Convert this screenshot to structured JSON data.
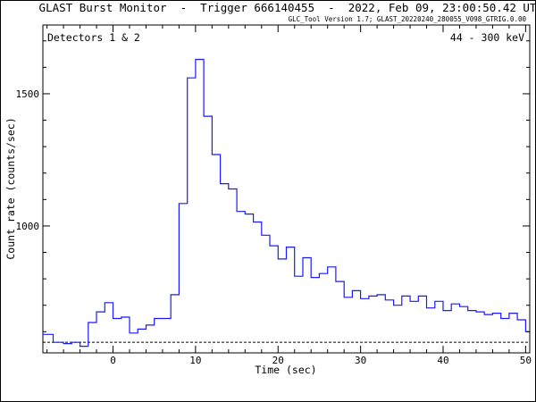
{
  "header": {
    "title": "GLAST Burst Monitor  -  Trigger 666140455  -  2022, Feb 09, 23:00:50.42 UT",
    "subtitle": "GLC_Tool Version 1.7; GLAST_20220240_280055_V098_GTRIG.0.00"
  },
  "annotations": {
    "detectors": "Detectors 1 & 2",
    "energy": "44 - 300 keV"
  },
  "colors": {
    "curve": "#1a1aff",
    "axes": "#000000",
    "baseline": "#000000"
  },
  "chart_data": {
    "type": "line",
    "title": "GLAST Burst Monitor  -  Trigger 666140455  -  2022, Feb 09, 23:00:50.42 UT",
    "xlabel": "Time (sec)",
    "ylabel": "Count rate (counts/sec)",
    "xlim": [
      -8.5,
      50.5
    ],
    "ylim": [
      520,
      1760
    ],
    "x_ticks": [
      0,
      10,
      20,
      30,
      40,
      50
    ],
    "x_tick_labels": [
      "0",
      "10",
      "20",
      "30",
      "40",
      "50"
    ],
    "y_ticks": [
      1000,
      1500
    ],
    "y_tick_labels": [
      "1000",
      "1500"
    ],
    "background_level": 560,
    "grid": false,
    "series": [
      {
        "style": "histogram",
        "bin_edges": [
          -8.5,
          -7.25,
          -6.0,
          -5.0,
          -4.0,
          -3.0,
          -2.0,
          -1.0,
          0.0,
          1.0,
          2.0,
          3.0,
          4.0,
          5.0,
          6.0,
          7.0,
          8.0,
          9.0,
          10.0,
          11.0,
          12.0,
          13.0,
          14.0,
          15.0,
          16.0,
          17.0,
          18.0,
          19.0,
          20.0,
          21.0,
          22.0,
          23.0,
          24.0,
          25.0,
          26.0,
          27.0,
          28.0,
          29.0,
          30.0,
          31.0,
          32.0,
          33.0,
          34.0,
          35.0,
          36.0,
          37.0,
          38.0,
          39.0,
          40.0,
          41.0,
          42.0,
          43.0,
          44.0,
          45.0,
          46.0,
          47.0,
          48.0,
          49.0,
          50.0,
          50.5
        ],
        "values": [
          590,
          560,
          555,
          560,
          545,
          635,
          675,
          710,
          650,
          655,
          595,
          610,
          625,
          650,
          650,
          740,
          1085,
          1560,
          1630,
          1415,
          1270,
          1160,
          1140,
          1055,
          1045,
          1015,
          965,
          925,
          875,
          920,
          810,
          880,
          805,
          820,
          845,
          790,
          730,
          755,
          725,
          735,
          740,
          720,
          700,
          735,
          715,
          735,
          690,
          715,
          680,
          705,
          695,
          680,
          675,
          665,
          670,
          650,
          670,
          645,
          600
        ]
      }
    ]
  }
}
